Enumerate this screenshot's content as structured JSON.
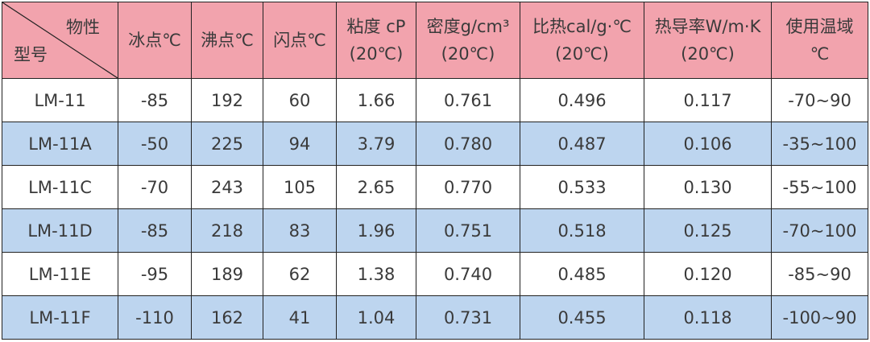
{
  "header": {
    "corner": {
      "top": "物性",
      "bottom": "型号"
    },
    "columns": [
      [
        "冰点℃"
      ],
      [
        "沸点℃"
      ],
      [
        "闪点℃"
      ],
      [
        "粘度 cP",
        "(20℃)"
      ],
      [
        "密度g/cm³",
        "(20℃)"
      ],
      [
        "比热cal/g·℃",
        "(20℃)"
      ],
      [
        "热导率W/m·K",
        "(20℃)"
      ],
      [
        "使用温域",
        "℃"
      ]
    ]
  },
  "rows": [
    [
      "LM-11",
      "-85",
      "192",
      "60",
      "1.66",
      "0.761",
      "0.496",
      "0.117",
      "-70~90"
    ],
    [
      "LM-11A",
      "-50",
      "225",
      "94",
      "3.79",
      "0.780",
      "0.487",
      "0.106",
      "-35~100"
    ],
    [
      "LM-11C",
      "-70",
      "243",
      "105",
      "2.65",
      "0.770",
      "0.533",
      "0.130",
      "-55~100"
    ],
    [
      "LM-11D",
      "-85",
      "218",
      "83",
      "1.96",
      "0.751",
      "0.518",
      "0.125",
      "-70~100"
    ],
    [
      "LM-11E",
      "-95",
      "189",
      "62",
      "1.38",
      "0.740",
      "0.485",
      "0.120",
      "-85~90"
    ],
    [
      "LM-11F",
      "-110",
      "162",
      "41",
      "1.04",
      "0.731",
      "0.455",
      "0.118",
      "-100~90"
    ]
  ]
}
